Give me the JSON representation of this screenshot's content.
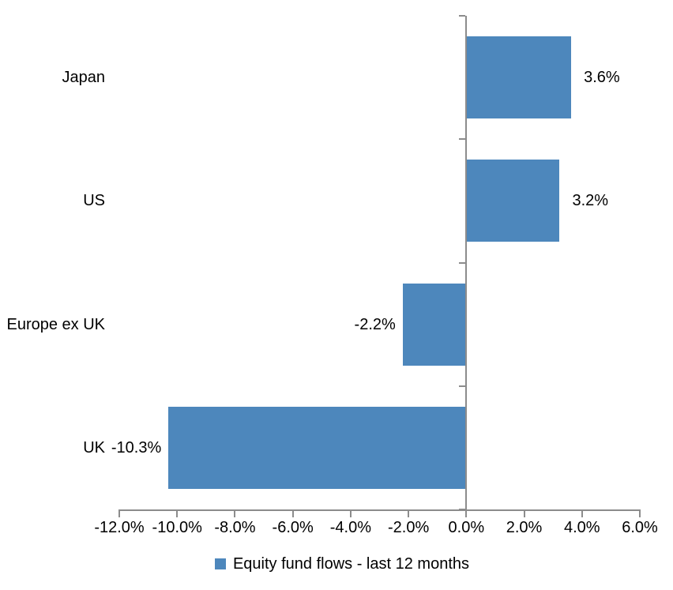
{
  "chart_data": {
    "type": "bar",
    "orientation": "horizontal",
    "title": "",
    "categories": [
      "Japan",
      "US",
      "Europe ex UK",
      "UK"
    ],
    "series": [
      {
        "name": "Equity fund flows - last 12 months",
        "values": [
          3.6,
          3.2,
          -2.2,
          -10.3
        ]
      }
    ],
    "data_labels": [
      "3.6%",
      "3.2%",
      "-2.2%",
      "-10.3%"
    ],
    "x_ticks": [
      -12,
      -10,
      -8,
      -6,
      -4,
      -2,
      0,
      2,
      4,
      6
    ],
    "x_tick_labels": [
      "-12.0%",
      "-10.0%",
      "-8.0%",
      "-6.0%",
      "-4.0%",
      "-2.0%",
      "0.0%",
      "2.0%",
      "4.0%",
      "6.0%"
    ],
    "xlim": [
      -12,
      6
    ],
    "grid": "off",
    "bar_color": "#4d87bc",
    "axis_color": "#8c8c8c",
    "text_color": "#000000",
    "legend": {
      "label": "Equity fund flows - last 12 months",
      "marker_color": "#4d87bc",
      "position": "bottom"
    }
  }
}
